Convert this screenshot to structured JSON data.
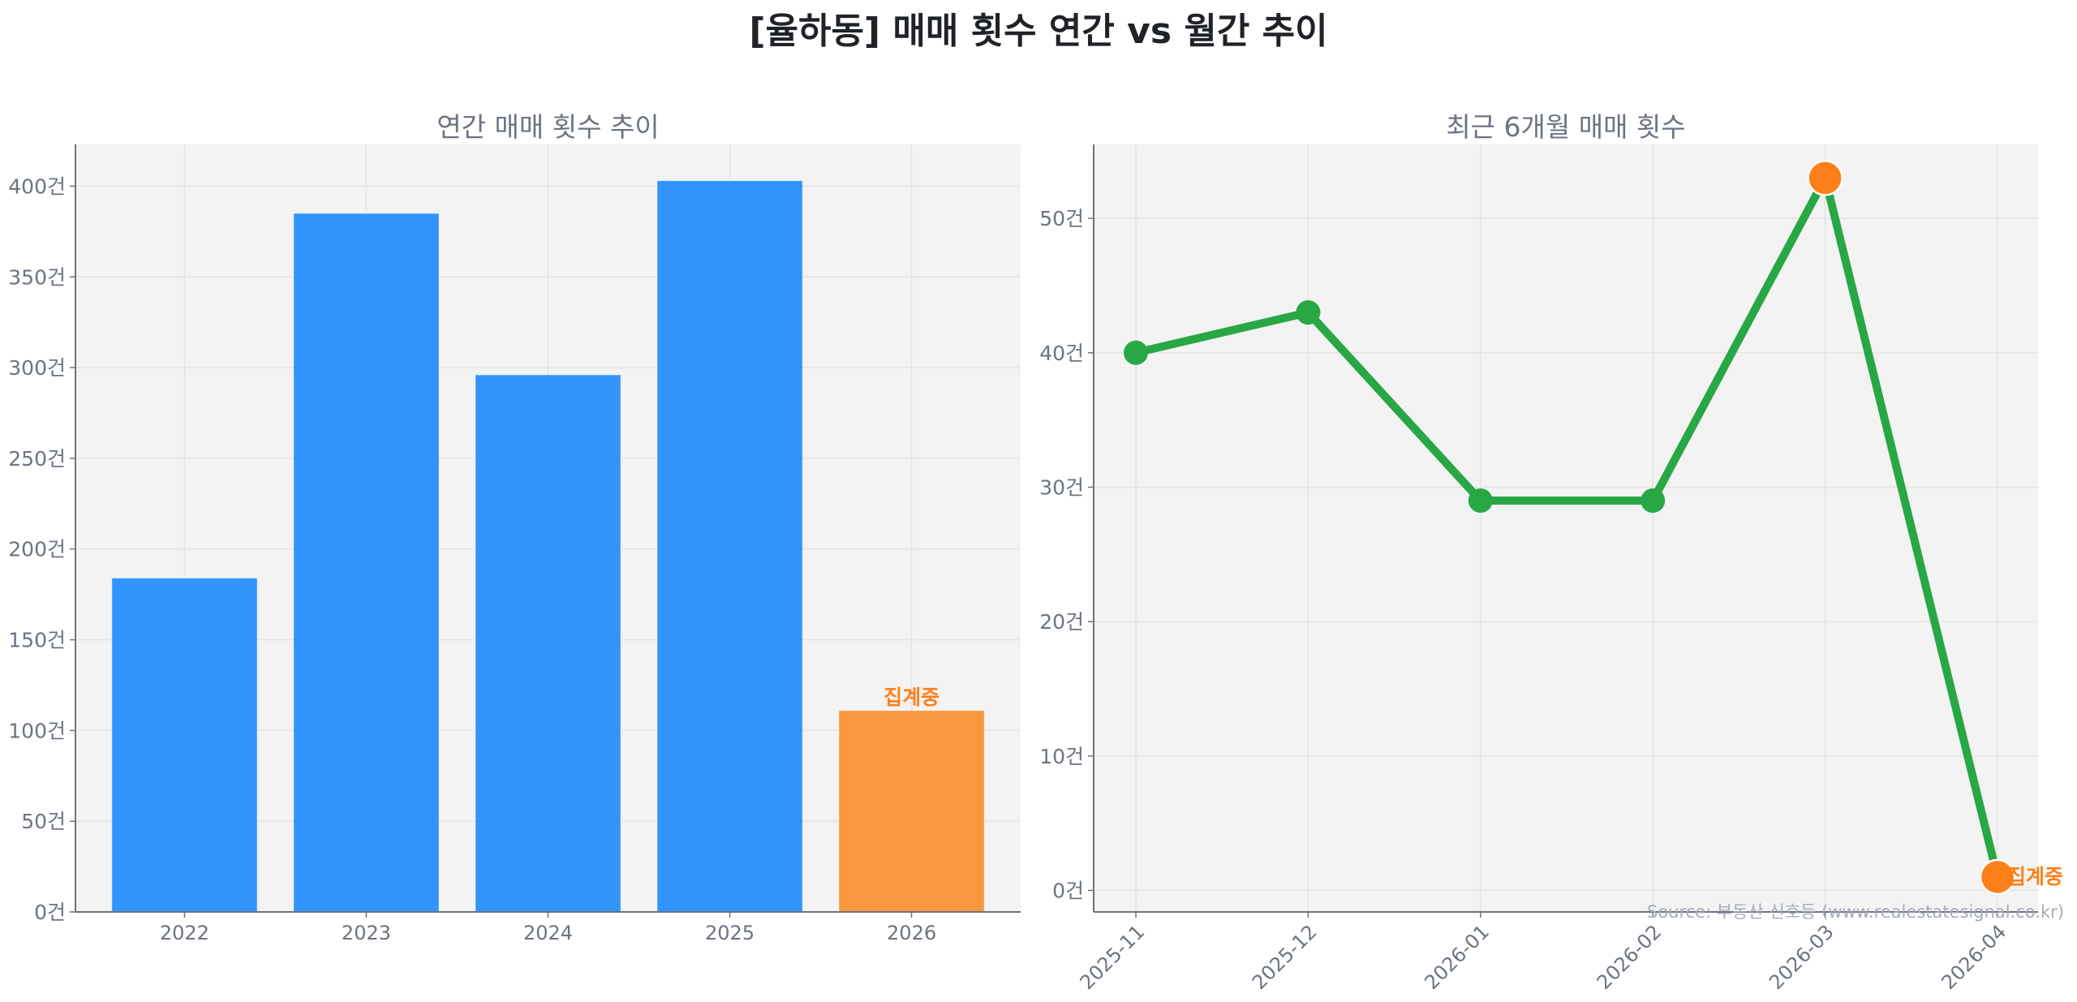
{
  "figure": {
    "title": "[율하동] 매매 횟수 연간 vs 월간 추이",
    "source": "Source: 부동산 신호등 (www.realestatesignal.co.kr)"
  },
  "colors": {
    "bar_complete": "#3194fb",
    "bar_partial": "#f99640",
    "line": "#28a745",
    "point_highlight": "#fd7f1a",
    "annotation": "#fd7f1a",
    "plot_bg": "#f3f3f3",
    "grid": "#e4e4e4",
    "axis": "#6b7480"
  },
  "chart_data": [
    {
      "type": "bar",
      "title": "연간 매매 횟수 추이",
      "categories": [
        "2022",
        "2023",
        "2024",
        "2025",
        "2026"
      ],
      "values": [
        184,
        385,
        296,
        403,
        111
      ],
      "xlabel": "",
      "ylabel": "",
      "ylim": [
        0,
        423
      ],
      "yticks": [
        0,
        50,
        100,
        150,
        200,
        250,
        300,
        350,
        400
      ],
      "ytick_labels": [
        "0건",
        "50건",
        "100건",
        "150건",
        "200건",
        "250건",
        "300건",
        "350건",
        "400건"
      ],
      "grid": true,
      "annotations": [
        {
          "category": "2026",
          "text": "집계중"
        }
      ],
      "bar_colors": [
        "#3194fb",
        "#3194fb",
        "#3194fb",
        "#3194fb",
        "#f99640"
      ]
    },
    {
      "type": "line",
      "title": "최근 6개월 매매 횟수",
      "x": [
        "2025-11",
        "2025-12",
        "2026-01",
        "2026-02",
        "2026-03",
        "2026-04"
      ],
      "values": [
        40,
        43,
        29,
        29,
        53,
        1
      ],
      "xlabel": "",
      "ylabel": "",
      "ylim": [
        -1.6,
        55.5
      ],
      "yticks": [
        0,
        10,
        20,
        30,
        40,
        50
      ],
      "ytick_labels": [
        "0건",
        "10건",
        "20건",
        "30건",
        "40건",
        "50건"
      ],
      "grid": true,
      "highlighted_points": [
        "2026-03",
        "2026-04"
      ],
      "annotations": [
        {
          "x": "2026-04",
          "text": "집계중"
        }
      ]
    }
  ]
}
